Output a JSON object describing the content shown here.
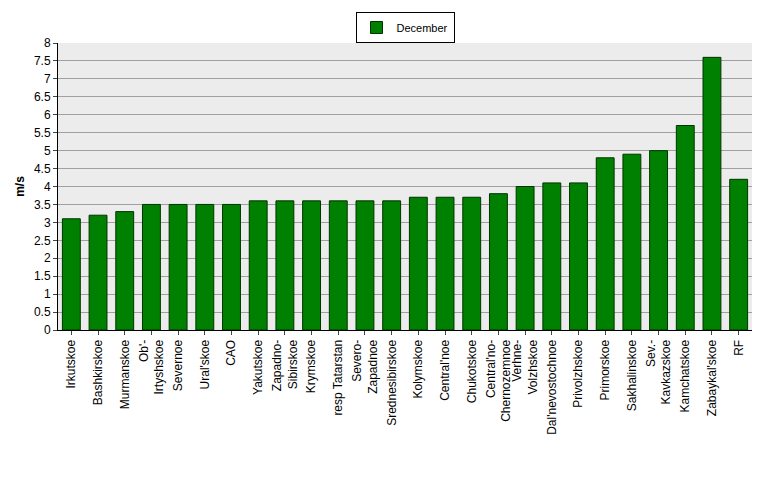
{
  "chart_data": {
    "type": "bar",
    "y_label": "m/s",
    "categories": [
      "Irkutskoe",
      "Bashkirskoe",
      "Murmanskoe",
      "Ob'-\nIrtyshskoe",
      "Severnoe",
      "Ural'skoe",
      "CAO",
      "Yakutskoe",
      "Zapadno-\nSibirskoe",
      "Krymskoe",
      "resp Tatarstan",
      "Severo-\nZapadnoe",
      "Srednesibirskoe",
      "Kolymskoe",
      "Central'noe",
      "Chukotskoe",
      "Central'no-\nChernozemnoe",
      "Verhne-\nVolzhskoe",
      "Dal'nevostochnoe",
      "Privolzhskoe",
      "Primorskoe",
      "Sakhalinskoe",
      "Sev.-\nKavkazskoe",
      "Kamchatskoe",
      "Zabaykal'skoe",
      "RF"
    ],
    "series": [
      {
        "name": "December",
        "color": "#008000",
        "values": [
          3.1,
          3.2,
          3.3,
          3.5,
          3.5,
          3.5,
          3.5,
          3.6,
          3.6,
          3.6,
          3.6,
          3.6,
          3.6,
          3.7,
          3.7,
          3.7,
          3.8,
          4.0,
          4.1,
          4.1,
          4.8,
          4.9,
          5.0,
          5.7,
          7.6,
          4.2
        ]
      }
    ],
    "ylim": [
      0,
      8
    ],
    "yticks": [
      0,
      0.5,
      1,
      1.5,
      2,
      2.5,
      3,
      3.5,
      4,
      4.5,
      5,
      5.5,
      6,
      6.5,
      7,
      7.5,
      8
    ],
    "grid": true,
    "legend": "top"
  }
}
